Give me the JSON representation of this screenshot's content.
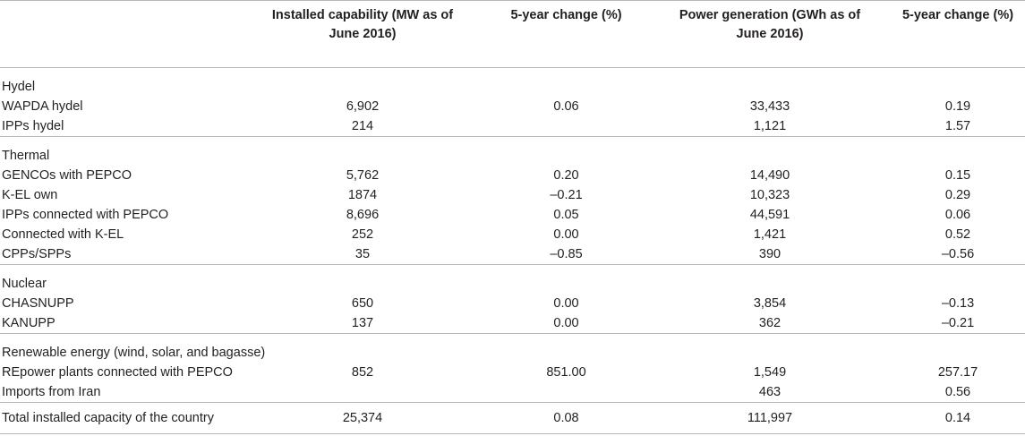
{
  "header": {
    "col0": "",
    "col1": "Installed capability (MW as of June 2016)",
    "col2": "5-year change (%)",
    "col3": "Power generation (GWh as of June 2016)",
    "col4": "5-year change (%)"
  },
  "groups": [
    {
      "title": "Hydel",
      "rows": [
        {
          "label": "WAPDA hydel",
          "cap": "6,902",
          "cap_chg": "0.06",
          "gen": "33,433",
          "gen_chg": "0.19"
        },
        {
          "label": "IPPs hydel",
          "cap": "214",
          "cap_chg": "",
          "gen": "1,121",
          "gen_chg": "1.57"
        }
      ]
    },
    {
      "title": "Thermal",
      "rows": [
        {
          "label": "GENCOs with PEPCO",
          "cap": "5,762",
          "cap_chg": "0.20",
          "gen": "14,490",
          "gen_chg": "0.15"
        },
        {
          "label": "K-EL own",
          "cap": "1874",
          "cap_chg": "–0.21",
          "gen": "10,323",
          "gen_chg": "0.29"
        },
        {
          "label": "IPPs connected with PEPCO",
          "cap": "8,696",
          "cap_chg": "0.05",
          "gen": "44,591",
          "gen_chg": "0.06"
        },
        {
          "label": "Connected with K-EL",
          "cap": "252",
          "cap_chg": "0.00",
          "gen": "1,421",
          "gen_chg": "0.52"
        },
        {
          "label": "CPPs/SPPs",
          "cap": "35",
          "cap_chg": "–0.85",
          "gen": "390",
          "gen_chg": "–0.56"
        }
      ]
    },
    {
      "title": "Nuclear",
      "rows": [
        {
          "label": "CHASNUPP",
          "cap": "650",
          "cap_chg": "0.00",
          "gen": "3,854",
          "gen_chg": "–0.13"
        },
        {
          "label": "KANUPP",
          "cap": "137",
          "cap_chg": "0.00",
          "gen": "362",
          "gen_chg": "–0.21"
        }
      ]
    },
    {
      "title": "Renewable energy (wind, solar, and bagasse)",
      "rows": [
        {
          "label": "REpower plants connected with PEPCO",
          "cap": "852",
          "cap_chg": "851.00",
          "gen": "1,549",
          "gen_chg": "257.17"
        },
        {
          "label": "Imports from Iran",
          "cap": "",
          "cap_chg": "",
          "gen": "463",
          "gen_chg": "0.56"
        }
      ]
    }
  ],
  "total": {
    "label": "Total installed capacity of the country",
    "cap": "25,374",
    "cap_chg": "0.08",
    "gen": "111,997",
    "gen_chg": "0.14"
  }
}
